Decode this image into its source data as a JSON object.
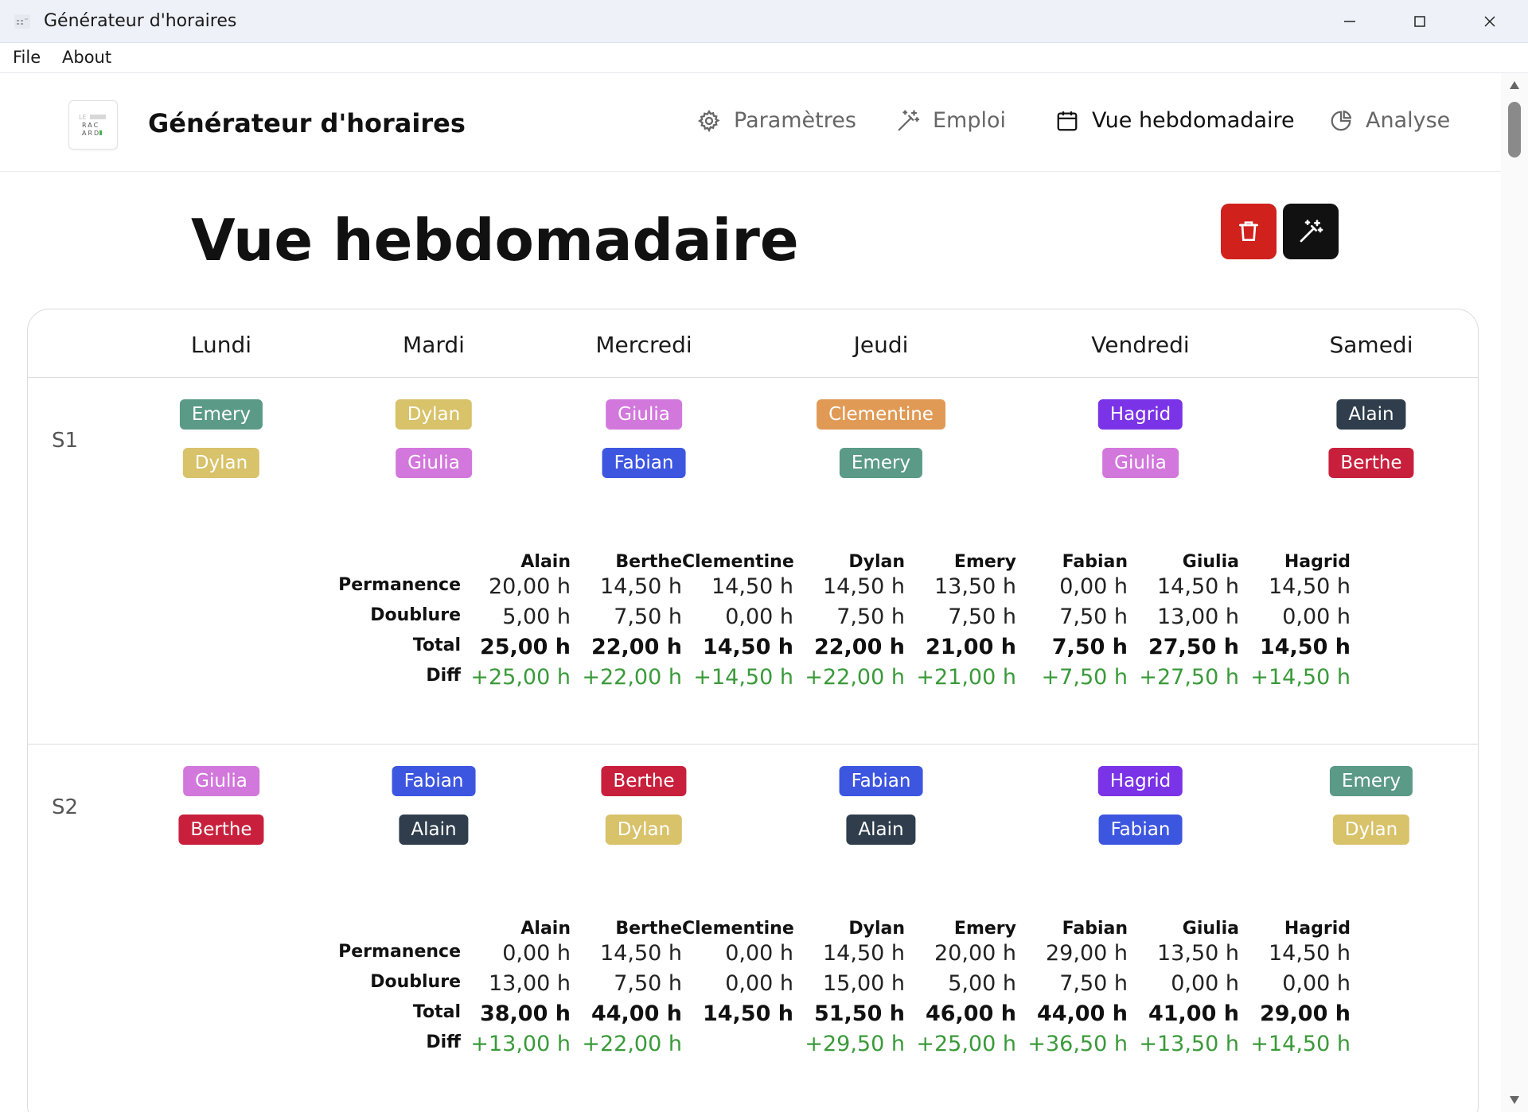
{
  "window": {
    "title": "Générateur d'horaires"
  },
  "menu": {
    "file": "File",
    "about": "About"
  },
  "header": {
    "brand": "Générateur d'horaires",
    "nav": [
      {
        "label": "Paramètres",
        "icon": "gear-icon"
      },
      {
        "label": "Emploi",
        "icon": "magic-wand-icon"
      },
      {
        "label": "Vue hebdomadaire",
        "icon": "calendar-icon"
      },
      {
        "label": "Analyse",
        "icon": "pie-chart-icon"
      }
    ],
    "active_nav": "Vue hebdomadaire"
  },
  "page": {
    "title": "Vue hebdomadaire",
    "delete_icon": "trash-icon",
    "generate_icon": "magic-wand-icon"
  },
  "days": [
    "Lundi",
    "Mardi",
    "Mercredi",
    "Jeudi",
    "Vendredi",
    "Samedi"
  ],
  "row_labels": {
    "perm": "Permanence",
    "doub": "Doublure",
    "total": "Total",
    "diff": "Diff"
  },
  "people_colors": {
    "Alain": "#2f3d4c",
    "Berthe": "#c8203c",
    "Clementine": "#e09a55",
    "Dylan": "#d8c26a",
    "Emery": "#5b9a86",
    "Fabian": "#3d56e0",
    "Giulia": "#d277dc",
    "Hagrid": "#7a33e6"
  },
  "weeks": [
    {
      "label": "S1",
      "schedule": [
        [
          "Emery",
          "Dylan"
        ],
        [
          "Dylan",
          "Giulia"
        ],
        [
          "Giulia",
          "Fabian"
        ],
        [
          "Clementine",
          "Emery"
        ],
        [
          "Hagrid",
          "Giulia"
        ],
        [
          "Alain",
          "Berthe"
        ]
      ],
      "stats": [
        {
          "name": "Alain",
          "perm": "20,00 h",
          "doub": "5,00 h",
          "total": "25,00 h",
          "diff": "+25,00 h"
        },
        {
          "name": "Berthe",
          "perm": "14,50 h",
          "doub": "7,50 h",
          "total": "22,00 h",
          "diff": "+22,00 h"
        },
        {
          "name": "Clementine",
          "perm": "14,50 h",
          "doub": "0,00 h",
          "total": "14,50 h",
          "diff": "+14,50 h"
        },
        {
          "name": "Dylan",
          "perm": "14,50 h",
          "doub": "7,50 h",
          "total": "22,00 h",
          "diff": "+22,00 h"
        },
        {
          "name": "Emery",
          "perm": "13,50 h",
          "doub": "7,50 h",
          "total": "21,00 h",
          "diff": "+21,00 h"
        },
        {
          "name": "Fabian",
          "perm": "0,00 h",
          "doub": "7,50 h",
          "total": "7,50 h",
          "diff": "+7,50 h"
        },
        {
          "name": "Giulia",
          "perm": "14,50 h",
          "doub": "13,00 h",
          "total": "27,50 h",
          "diff": "+27,50 h"
        },
        {
          "name": "Hagrid",
          "perm": "14,50 h",
          "doub": "0,00 h",
          "total": "14,50 h",
          "diff": "+14,50 h"
        }
      ]
    },
    {
      "label": "S2",
      "schedule": [
        [
          "Giulia",
          "Berthe"
        ],
        [
          "Fabian",
          "Alain"
        ],
        [
          "Berthe",
          "Dylan"
        ],
        [
          "Fabian",
          "Alain"
        ],
        [
          "Hagrid",
          "Fabian"
        ],
        [
          "Emery",
          "Dylan"
        ]
      ],
      "stats": [
        {
          "name": "Alain",
          "perm": "0,00 h",
          "doub": "13,00 h",
          "total": "38,00 h",
          "diff": "+13,00 h"
        },
        {
          "name": "Berthe",
          "perm": "14,50 h",
          "doub": "7,50 h",
          "total": "44,00 h",
          "diff": "+22,00 h"
        },
        {
          "name": "Clementine",
          "perm": "0,00 h",
          "doub": "0,00 h",
          "total": "14,50 h",
          "diff": ""
        },
        {
          "name": "Dylan",
          "perm": "14,50 h",
          "doub": "15,00 h",
          "total": "51,50 h",
          "diff": "+29,50 h"
        },
        {
          "name": "Emery",
          "perm": "20,00 h",
          "doub": "5,00 h",
          "total": "46,00 h",
          "diff": "+25,00 h"
        },
        {
          "name": "Fabian",
          "perm": "29,00 h",
          "doub": "7,50 h",
          "total": "44,00 h",
          "diff": "+36,50 h"
        },
        {
          "name": "Giulia",
          "perm": "13,50 h",
          "doub": "0,00 h",
          "total": "41,00 h",
          "diff": "+13,50 h"
        },
        {
          "name": "Hagrid",
          "perm": "14,50 h",
          "doub": "0,00 h",
          "total": "29,00 h",
          "diff": "+14,50 h"
        }
      ]
    }
  ]
}
